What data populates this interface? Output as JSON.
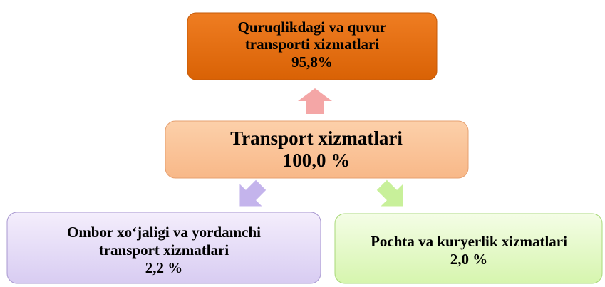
{
  "nodes": [
    {
      "lines": [
        "Quruqlikdagi va quvur",
        "transporti xizmatlari",
        "95,8%"
      ]
    },
    {
      "lines": [
        "Transport xizmatlari",
        "100,0 %"
      ]
    },
    {
      "lines": [
        "Ombor xo‘jaligi va yordamchi",
        "transport xizmatlari",
        "2,2 %"
      ]
    },
    {
      "lines": [
        "Pochta va kuryerlik xizmatlari",
        "2,0 %"
      ]
    }
  ]
}
